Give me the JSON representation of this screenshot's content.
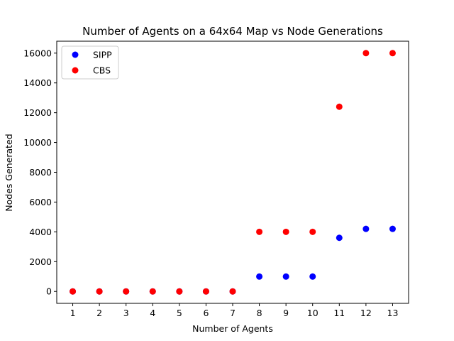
{
  "chart_data": {
    "type": "scatter",
    "title": "Number of Agents on a 64x64 Map vs Node Generations",
    "xlabel": "Number of Agents",
    "ylabel": "Nodes Generated",
    "xlim": [
      0.4,
      13.6
    ],
    "ylim": [
      -800,
      16800
    ],
    "xticks": [
      1,
      2,
      3,
      4,
      5,
      6,
      7,
      8,
      9,
      10,
      11,
      12,
      13
    ],
    "yticks": [
      0,
      2000,
      4000,
      6000,
      8000,
      10000,
      12000,
      14000,
      16000
    ],
    "grid": false,
    "legend_position": "top-left",
    "series": [
      {
        "name": "SIPP",
        "color": "#0000ff",
        "x": [
          1,
          2,
          3,
          4,
          5,
          6,
          7,
          8,
          9,
          10,
          11,
          12,
          13
        ],
        "y": [
          0,
          0,
          0,
          0,
          0,
          0,
          0,
          1000,
          1000,
          1000,
          3600,
          4200,
          4200
        ]
      },
      {
        "name": "CBS",
        "color": "#ff0000",
        "x": [
          1,
          2,
          3,
          4,
          5,
          6,
          7,
          8,
          9,
          10,
          11,
          12,
          13
        ],
        "y": [
          0,
          0,
          0,
          0,
          0,
          0,
          0,
          4000,
          4000,
          4000,
          12400,
          16000,
          16000
        ]
      }
    ]
  }
}
